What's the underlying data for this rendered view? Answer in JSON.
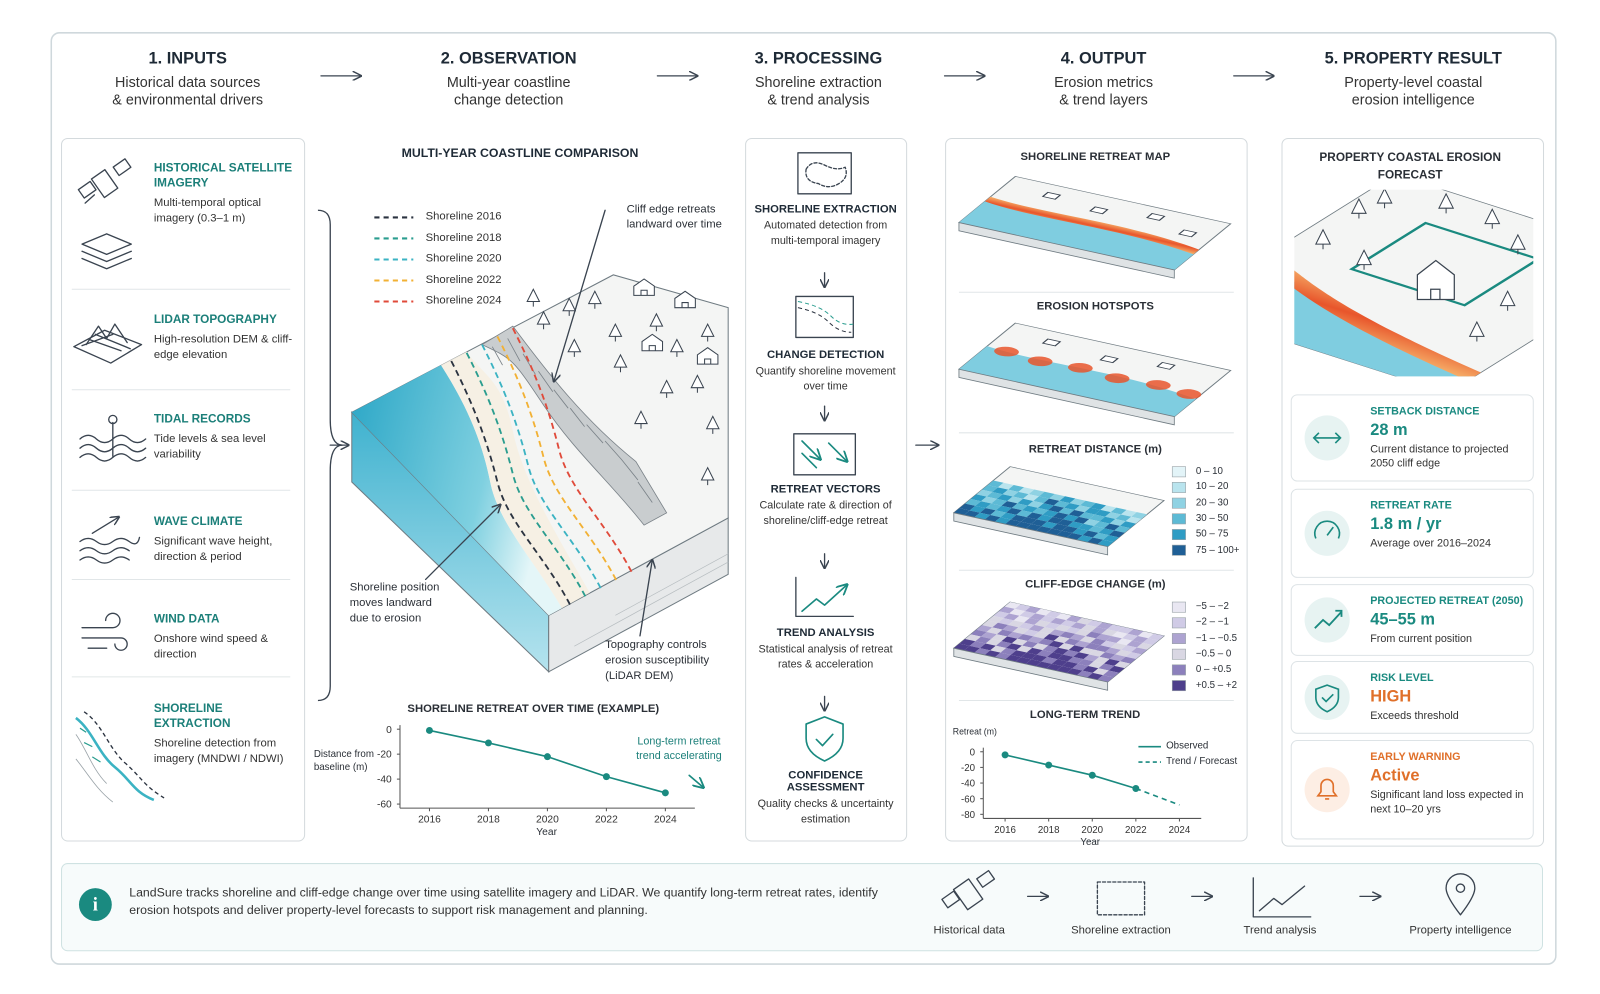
{
  "steps": [
    {
      "title": "1. INPUTS",
      "subtitle": [
        "Historical data sources",
        "& environmental drivers"
      ]
    },
    {
      "title": "2. OBSERVATION",
      "subtitle": [
        "Multi-year coastline",
        "change detection"
      ]
    },
    {
      "title": "3. PROCESSING",
      "subtitle": [
        "Shoreline extraction",
        "& trend analysis"
      ]
    },
    {
      "title": "4. OUTPUT",
      "subtitle": [
        "Erosion metrics",
        "& trend layers"
      ]
    },
    {
      "title": "5. PROPERTY RESULT",
      "subtitle": [
        "Property-level coastal",
        "erosion intelligence"
      ]
    }
  ],
  "inputs": [
    {
      "title": "HISTORICAL SATELLITE IMAGERY",
      "text": "Multi-temporal optical imagery (0.3–1 m)"
    },
    {
      "title": "LIDAR TOPOGRAPHY",
      "text": "High-resolution DEM & cliff-edge elevation"
    },
    {
      "title": "TIDAL RECORDS",
      "text": "Tide levels & sea level variability"
    },
    {
      "title": "WAVE CLIMATE",
      "text": "Significant wave height, direction & period"
    },
    {
      "title": "WIND DATA",
      "text": "Onshore wind speed & direction"
    },
    {
      "title": "SHORELINE EXTRACTION",
      "text": "Shoreline detection from imagery (MNDWI / NDWI)"
    }
  ],
  "observation": {
    "title": "MULTI-YEAR COASTLINE COMPARISON",
    "shorelines": [
      {
        "name": "Shoreline 2016",
        "color": "#2b3340"
      },
      {
        "name": "Shoreline 2018",
        "color": "#2a9d8f"
      },
      {
        "name": "Shoreline 2020",
        "color": "#3bb3c3"
      },
      {
        "name": "Shoreline 2022",
        "color": "#f2b134"
      },
      {
        "name": "Shoreline 2024",
        "color": "#e04a3a"
      }
    ],
    "annotations": [
      "Cliff edge retreats landward over time",
      "Shoreline position moves landward due to erosion",
      "Topography controls erosion susceptibility (LiDAR DEM)"
    ],
    "chart": {
      "type": "line",
      "title": "SHORELINE RETREAT OVER TIME (EXAMPLE)",
      "y_label": "Distance from baseline (m)",
      "x_label": "Year",
      "x": [
        2016,
        2018,
        2020,
        2022,
        2024
      ],
      "values": [
        -1,
        -11,
        -22,
        -38,
        -51
      ],
      "color": "#1a8a80",
      "xlim": [
        2015,
        2025
      ],
      "xticks": [
        2016,
        2018,
        2020,
        2022,
        2024
      ],
      "ylim": [
        -60,
        0
      ],
      "yticks": [
        0,
        -20,
        -40,
        -60
      ],
      "annotation": "Long-term retreat trend accelerating"
    }
  },
  "processing": [
    {
      "title": "SHORELINE EXTRACTION",
      "text": "Automated detection from multi-temporal imagery"
    },
    {
      "title": "CHANGE DETECTION",
      "text": "Quantify shoreline movement over time"
    },
    {
      "title": "RETREAT VECTORS",
      "text": "Calculate rate & direction of shoreline/cliff-edge retreat"
    },
    {
      "title": "TREND ANALYSIS",
      "text": "Statistical analysis of retreat rates & acceleration"
    },
    {
      "title": "CONFIDENCE ASSESSMENT",
      "text": "Quality checks & uncertainty estimation"
    }
  ],
  "output": {
    "retreat_map_title": "SHORELINE RETREAT MAP",
    "hotspots_title": "EROSION HOTSPOTS",
    "retreat_distance": {
      "title": "RETREAT DISTANCE (m)",
      "classes": [
        {
          "label": "0 – 10",
          "color": "#e3f4f8"
        },
        {
          "label": "10 – 20",
          "color": "#b9e4ee"
        },
        {
          "label": "20 – 30",
          "color": "#8fd2e3"
        },
        {
          "label": "30 – 50",
          "color": "#5dbad5"
        },
        {
          "label": "50 – 75",
          "color": "#2f9cc4"
        },
        {
          "label": "75 – 100+",
          "color": "#1f5f96"
        }
      ]
    },
    "cliff_change": {
      "title": "CLIFF-EDGE CHANGE (m)",
      "classes": [
        {
          "label": "−5 – −2",
          "color": "#e9e7f2"
        },
        {
          "label": "−2 – −1",
          "color": "#d0cbe6"
        },
        {
          "label": "−1 – −0.5",
          "color": "#ada3d1"
        },
        {
          "label": "−0.5 – 0",
          "color": "#d9d7e3"
        },
        {
          "label": "0 – +0.5",
          "color": "#8c80bc"
        },
        {
          "label": "+0.5 – +2",
          "color": "#4e3f8c"
        }
      ]
    },
    "trend": {
      "type": "line",
      "title": "LONG-TERM TREND",
      "y_label": "Retreat (m)",
      "x_label": "Year",
      "series": [
        {
          "name": "Observed",
          "color": "#1a8a80",
          "x": [
            2016,
            2018,
            2020,
            2022
          ],
          "values": [
            -4,
            -17,
            -30,
            -47
          ]
        },
        {
          "name": "Trend / Forecast",
          "color": "#1a8a80",
          "dashed": true,
          "x": [
            2022,
            2024
          ],
          "values": [
            -47,
            -68
          ]
        }
      ],
      "xlim": [
        2015,
        2025
      ],
      "xticks": [
        2016,
        2018,
        2020,
        2022,
        2024
      ],
      "ylim": [
        -80,
        0
      ],
      "yticks": [
        0,
        -20,
        -40,
        -60,
        -80
      ]
    }
  },
  "result": {
    "title": "PROPERTY COASTAL EROSION FORECAST",
    "cards": [
      {
        "label": "SETBACK DISTANCE",
        "value": "28 m",
        "text": "Current distance to projected 2050 cliff edge",
        "color": "#1a8a80",
        "label_color": "#1a8a80"
      },
      {
        "label": "RETREAT RATE",
        "value": "1.8 m / yr",
        "text": "Average over 2016–2024",
        "color": "#1a8a80",
        "label_color": "#1a8a80"
      },
      {
        "label": "PROJECTED RETREAT (2050)",
        "value": "45–55 m",
        "text": "From current position",
        "color": "#1a8a80",
        "label_color": "#1a8a80"
      },
      {
        "label": "RISK LEVEL",
        "value": "HIGH",
        "text": "Exceeds threshold",
        "color": "#e0702a",
        "label_color": "#1a8a80"
      },
      {
        "label": "EARLY WARNING",
        "value": "Active",
        "text": "Significant land loss expected in next 10–20 yrs",
        "color": "#e0702a",
        "label_color": "#e0702a"
      }
    ]
  },
  "footer": {
    "text": "LandSure tracks shoreline and cliff-edge change over time using satellite imagery and LiDAR. We quantify long-term retreat rates, identify erosion hotspots and deliver property-level forecasts to support risk management and planning.",
    "flow": [
      "Historical data",
      "Shoreline extraction",
      "Trend analysis",
      "Property intelligence"
    ]
  }
}
